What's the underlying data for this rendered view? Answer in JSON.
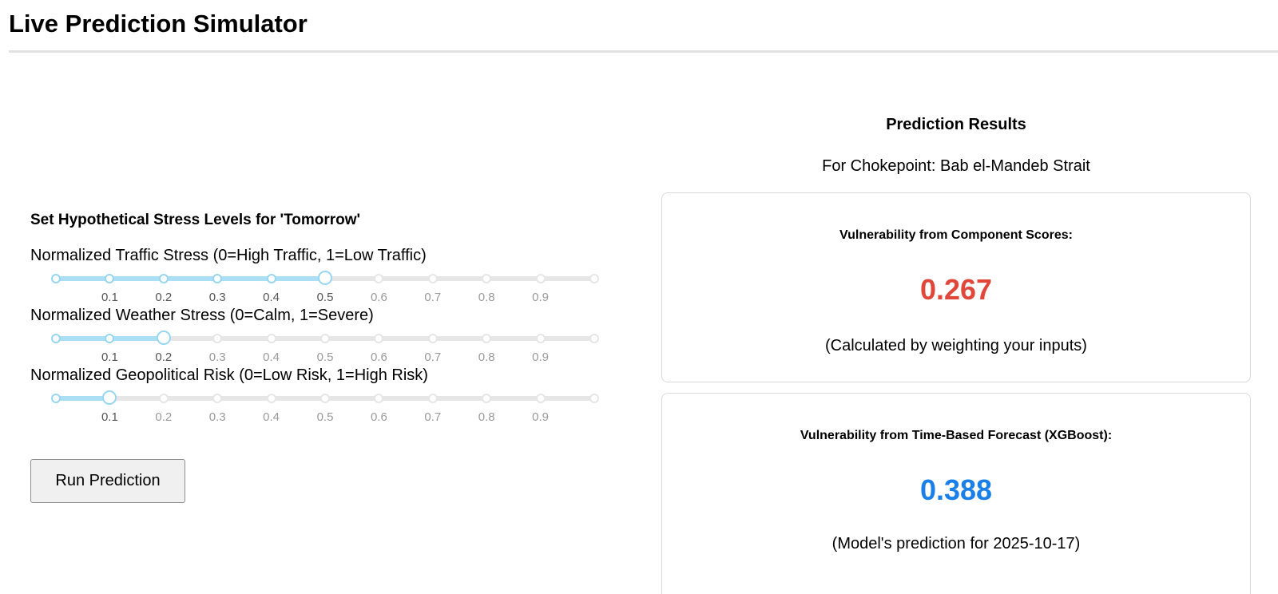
{
  "page": {
    "title": "Live Prediction Simulator"
  },
  "controls": {
    "heading": "Set Hypothetical Stress Levels for 'Tomorrow'",
    "tick_labels": [
      "0.1",
      "0.2",
      "0.3",
      "0.4",
      "0.5",
      "0.6",
      "0.7",
      "0.8",
      "0.9"
    ],
    "sliders": [
      {
        "label": "Normalized Traffic Stress (0=High Traffic, 1=Low Traffic)",
        "value": 0.5
      },
      {
        "label": "Normalized Weather Stress (0=Calm, 1=Severe)",
        "value": 0.2
      },
      {
        "label": "Normalized Geopolitical Risk (0=Low Risk, 1=High Risk)",
        "value": 0.1
      }
    ],
    "run_button": "Run Prediction"
  },
  "results": {
    "heading": "Prediction Results",
    "chokepoint_line": "For Chokepoint: Bab el-Mandeb Strait",
    "component_card": {
      "title": "Vulnerability from Component Scores:",
      "value": "0.267",
      "value_color": "#e0473a",
      "note": "(Calculated by weighting your inputs)"
    },
    "forecast_card": {
      "title": "Vulnerability from Time-Based Forecast (XGBoost):",
      "value": "0.388",
      "value_color": "#1a7fe8",
      "note": "(Model's prediction for 2025-10-17)"
    }
  }
}
